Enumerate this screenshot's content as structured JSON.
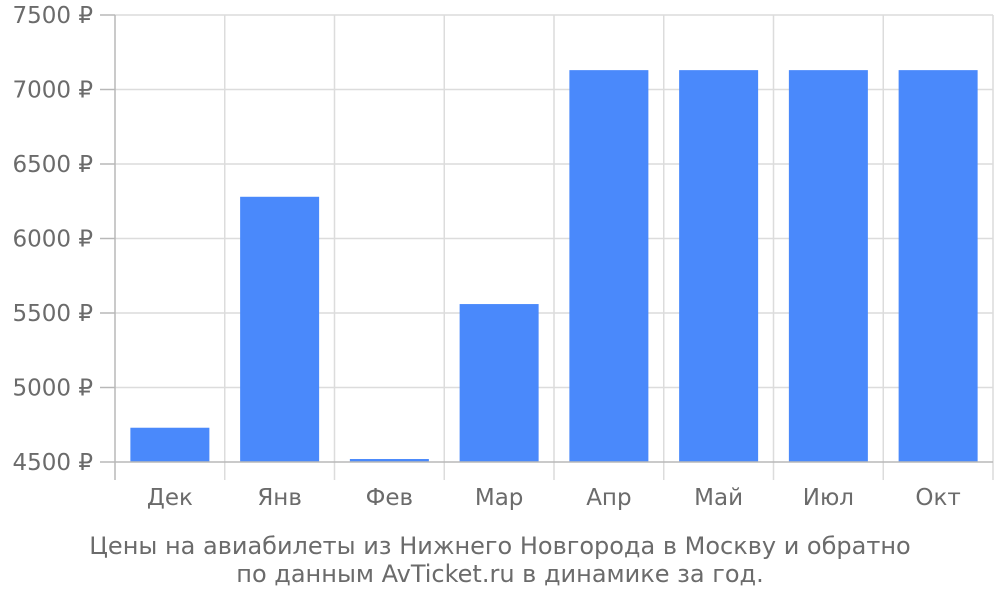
{
  "chart_data": {
    "type": "bar",
    "categories": [
      "Дек",
      "Янв",
      "Фев",
      "Мар",
      "Апр",
      "Май",
      "Июл",
      "Окт"
    ],
    "values": [
      4730,
      6280,
      4520,
      5560,
      7130,
      7130,
      7130,
      7130
    ],
    "ylim": [
      4500,
      7500
    ],
    "yticks": [
      4500,
      5000,
      5500,
      6000,
      6500,
      7000,
      7500
    ],
    "ytick_labels": [
      "4500 ₽",
      "5000 ₽",
      "5500 ₽",
      "6000 ₽",
      "6500 ₽",
      "7000 ₽",
      "7500 ₽"
    ],
    "bar_color": "#4a89fb",
    "grid": true,
    "caption_lines": [
      "Цены на авиабилеты из Нижнего Новгорода в Москву и обратно",
      "по данным AvTicket.ru в динамике за год."
    ]
  }
}
